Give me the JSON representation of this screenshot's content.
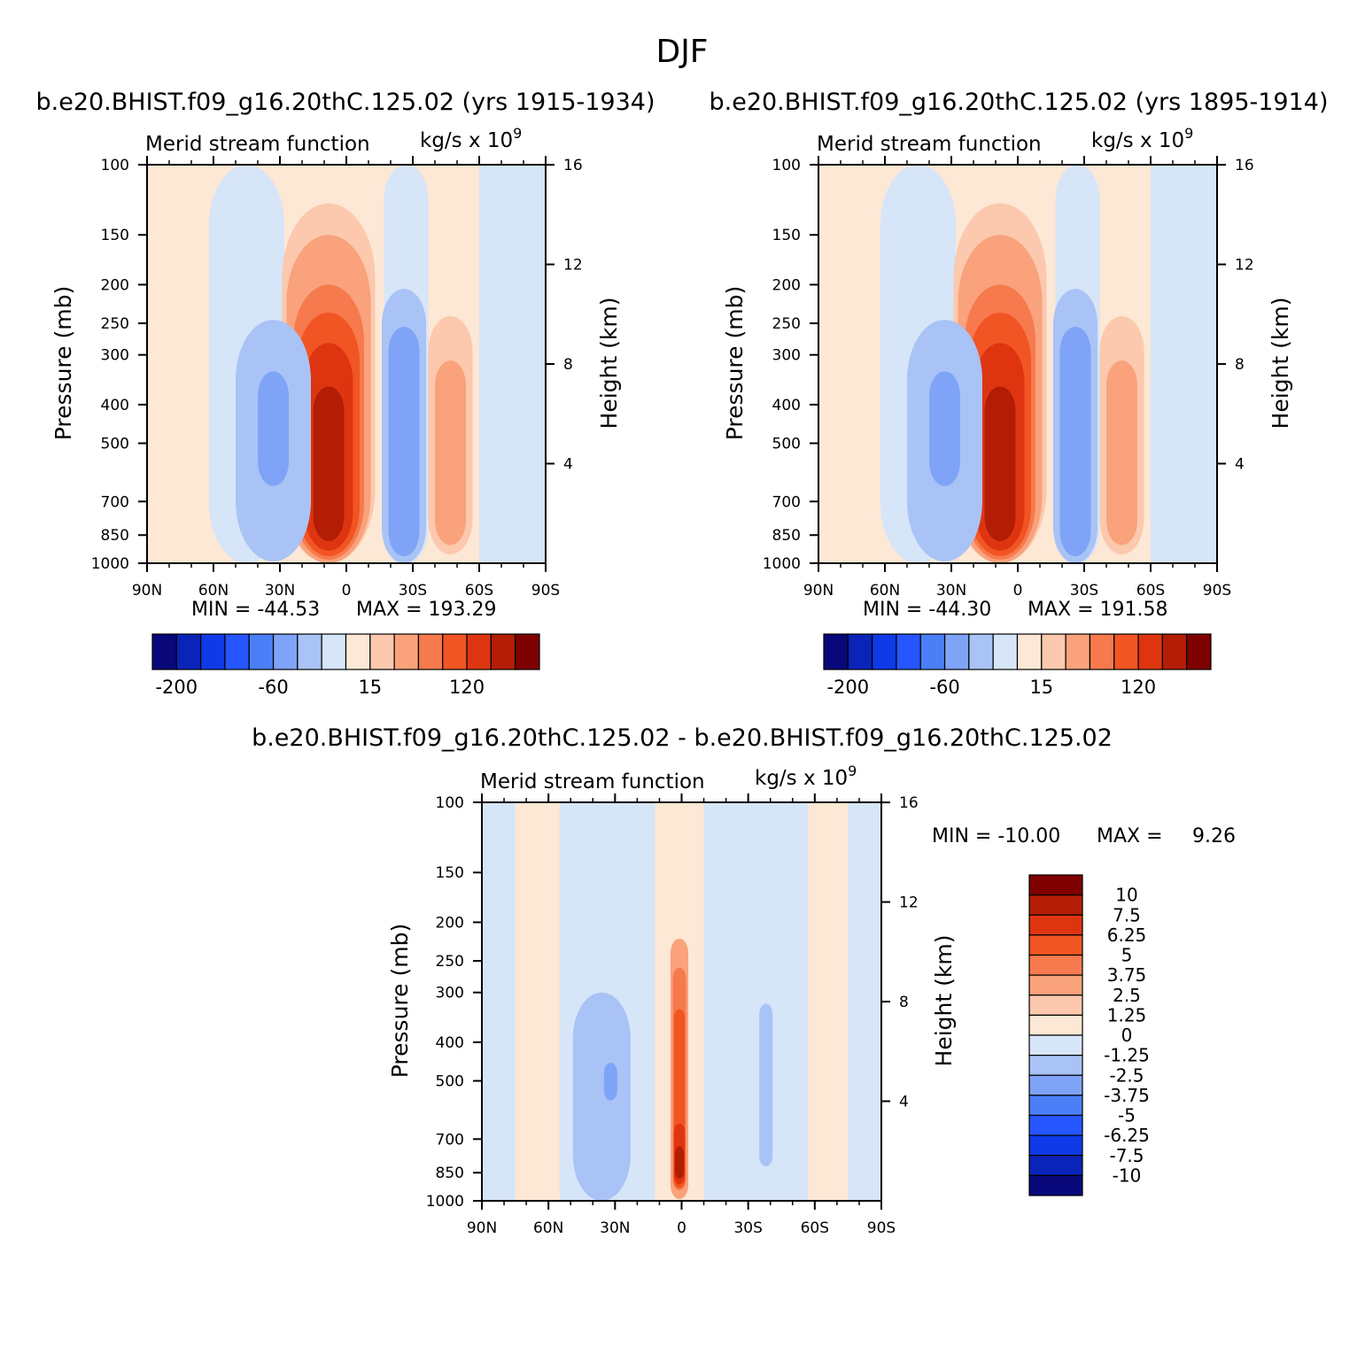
{
  "figure": {
    "title": "DJF",
    "colors": {
      "blues": [
        "#08087a",
        "#0a23b8",
        "#0f3ae8",
        "#2656ff",
        "#4a7ff7",
        "#7ea3f7",
        "#a9c3f6",
        "#d6e5f8"
      ],
      "reds": [
        "#fde7d5",
        "#fcc8ae",
        "#f9a27b",
        "#f67a4d",
        "#f15523",
        "#de3510",
        "#b31d05",
        "#7f0000"
      ]
    }
  },
  "chart_data": [
    {
      "type": "contour",
      "title": "b.e20.BHIST.f09_g16.20thC.125.02 (yrs 1915-1934)",
      "field_label": "Merid stream function",
      "units": "kg/s x 10",
      "units_exponent": "9",
      "xlabel": "",
      "ylabel": "Pressure (mb)",
      "ylabel_right": "Height (km)",
      "xticks": [
        "90N",
        "60N",
        "30N",
        "0",
        "30S",
        "60S",
        "90S"
      ],
      "yticks": [
        "100",
        "150",
        "200",
        "250",
        "300",
        "400",
        "500",
        "700",
        "850",
        "1000"
      ],
      "yticks_right": [
        "16",
        "12",
        "8",
        "4"
      ],
      "min_label": "MIN = -44.53",
      "max_label": "MAX = 193.29",
      "min": -44.53,
      "max": 193.29,
      "colorbar_labels": [
        "-200",
        "-60",
        "15",
        "120"
      ]
    },
    {
      "type": "contour",
      "title": "b.e20.BHIST.f09_g16.20thC.125.02 (yrs 1895-1914)",
      "field_label": "Merid stream function",
      "units": "kg/s x 10",
      "units_exponent": "9",
      "xlabel": "",
      "ylabel": "Pressure (mb)",
      "ylabel_right": "Height (km)",
      "xticks": [
        "90N",
        "60N",
        "30N",
        "0",
        "30S",
        "60S",
        "90S"
      ],
      "yticks": [
        "100",
        "150",
        "200",
        "250",
        "300",
        "400",
        "500",
        "700",
        "850",
        "1000"
      ],
      "yticks_right": [
        "16",
        "12",
        "8",
        "4"
      ],
      "min_label": "MIN = -44.30",
      "max_label": "MAX = 191.58",
      "min": -44.3,
      "max": 191.58,
      "colorbar_labels": [
        "-200",
        "-60",
        "15",
        "120"
      ]
    },
    {
      "type": "contour",
      "title": "b.e20.BHIST.f09_g16.20thC.125.02 - b.e20.BHIST.f09_g16.20thC.125.02",
      "field_label": "Merid stream function",
      "units": "kg/s x 10",
      "units_exponent": "9",
      "xlabel": "",
      "ylabel": "Pressure (mb)",
      "ylabel_right": "Height (km)",
      "xticks": [
        "90N",
        "60N",
        "30N",
        "0",
        "30S",
        "60S",
        "90S"
      ],
      "yticks": [
        "100",
        "150",
        "200",
        "250",
        "300",
        "400",
        "500",
        "700",
        "850",
        "1000"
      ],
      "yticks_right": [
        "16",
        "12",
        "8",
        "4"
      ],
      "min_label": "MIN = -10.00",
      "max_label": "MAX =",
      "max_value_label": "9.26",
      "min": -10.0,
      "max": 9.26,
      "colorbar_labels": [
        "10",
        "7.5",
        "6.25",
        "5",
        "3.75",
        "2.5",
        "1.25",
        "0",
        "-1.25",
        "-2.5",
        "-3.75",
        "-5",
        "-6.25",
        "-7.5",
        "-10"
      ]
    }
  ]
}
